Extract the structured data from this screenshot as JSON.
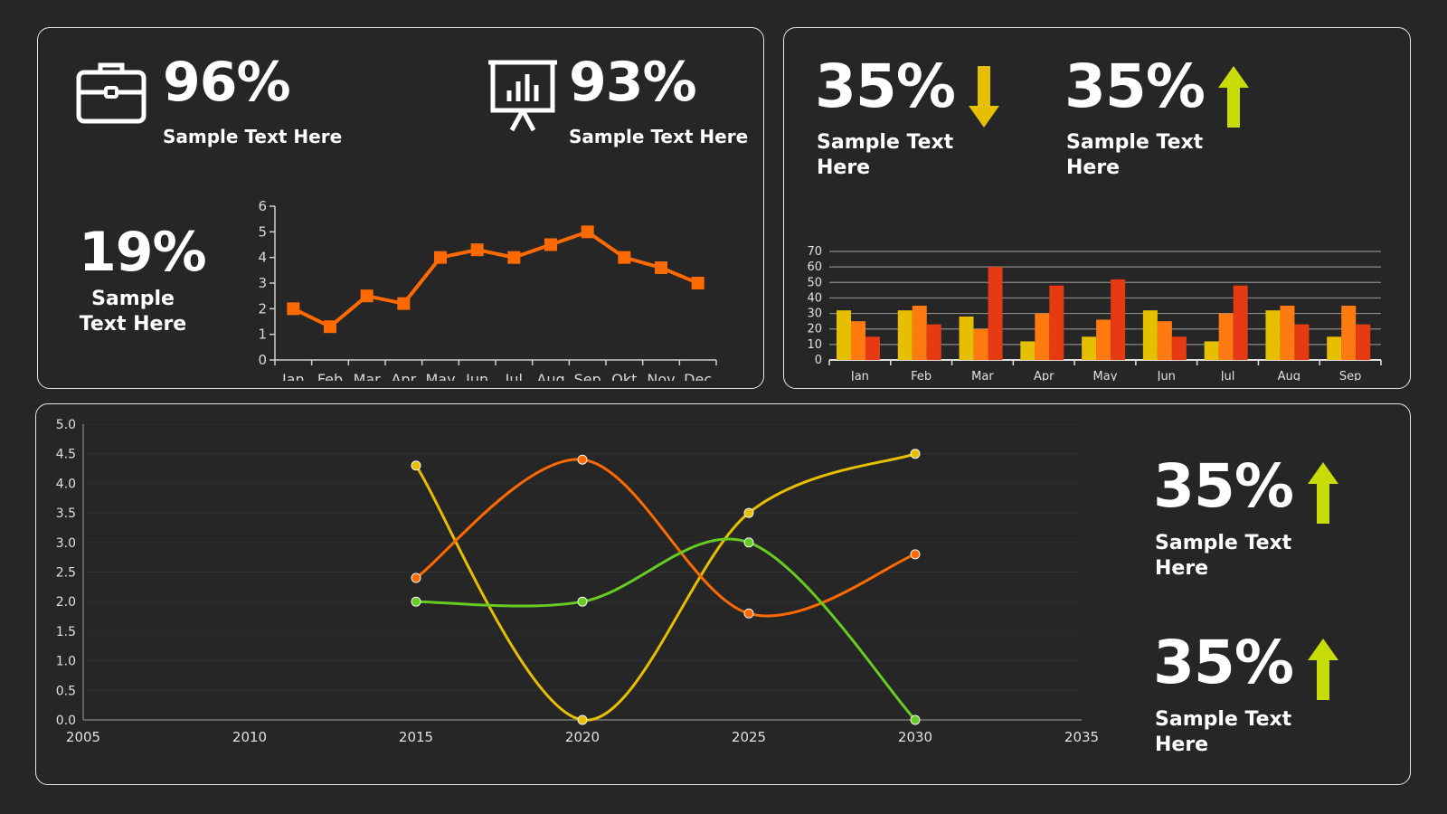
{
  "top_left": {
    "kpi1": {
      "value": "96%",
      "label": "Sample Text Here",
      "icon": "briefcase-icon"
    },
    "kpi2": {
      "value": "93%",
      "label": "Sample Text Here",
      "icon": "presentation-chart-icon"
    },
    "kpi3": {
      "value": "19%",
      "label_line1": "Sample",
      "label_line2": "Text Here"
    }
  },
  "top_right": {
    "kpi1": {
      "value": "35%",
      "label_line1": "Sample Text",
      "label_line2": "Here",
      "icon": "arrow-down-icon"
    },
    "kpi2": {
      "value": "35%",
      "label_line1": "Sample Text",
      "label_line2": "Here",
      "icon": "arrow-up-icon"
    }
  },
  "bottom": {
    "kpi1": {
      "value": "35%",
      "label_line1": "Sample Text",
      "label_line2": "Here",
      "icon": "arrow-up-icon"
    },
    "kpi2": {
      "value": "35%",
      "label_line1": "Sample Text",
      "label_line2": "Here",
      "icon": "arrow-up-icon"
    }
  },
  "colors": {
    "background": "#262626",
    "border": "#e6e6e6",
    "orange": "#ff6a00",
    "yellow": "#e6c000",
    "green": "#66cc22",
    "red": "#e63a12",
    "arrow_down": "#e6c000",
    "arrow_up": "#c8dc0a"
  },
  "chart_data": [
    {
      "type": "line",
      "categories": [
        "Jan",
        "Feb",
        "Mar",
        "Apr",
        "May",
        "Jun",
        "Jul",
        "Aug",
        "Sep",
        "Okt",
        "Nov",
        "Dec"
      ],
      "values": [
        2,
        1.3,
        2.5,
        2.2,
        4,
        4.3,
        4,
        4.5,
        5,
        4,
        3.6,
        3
      ],
      "ylim": [
        0,
        6
      ],
      "yticks": [
        0,
        1,
        2,
        3,
        4,
        5,
        6
      ],
      "color": "#ff6a00"
    },
    {
      "type": "bar",
      "categories": [
        "Jan",
        "Feb",
        "Mar",
        "Apr",
        "May",
        "Jun",
        "Jul",
        "Aug",
        "Sep"
      ],
      "series": [
        {
          "values": [
            32,
            32,
            28,
            12,
            15,
            32,
            12,
            32,
            15
          ],
          "color": "#e6c000"
        },
        {
          "values": [
            25,
            35,
            20,
            30,
            26,
            25,
            30,
            35,
            35
          ],
          "color": "#ff7a10"
        },
        {
          "values": [
            15,
            23,
            60,
            48,
            52,
            15,
            48,
            23,
            23
          ],
          "color": "#e63a12"
        }
      ],
      "ylim": [
        0,
        70
      ],
      "yticks": [
        0,
        10,
        20,
        30,
        40,
        50,
        60,
        70
      ]
    },
    {
      "type": "line",
      "x_ticks": [
        "2005",
        "2010",
        "2015",
        "2020",
        "2025",
        "2030",
        "2035"
      ],
      "xlim": [
        2005,
        2035
      ],
      "ylim": [
        0,
        5
      ],
      "yticks": [
        "0.0",
        "0.5",
        "1.0",
        "1.5",
        "2.0",
        "2.5",
        "3.0",
        "3.5",
        "4.0",
        "4.5",
        "5.0"
      ],
      "series": [
        {
          "x": [
            2015,
            2020,
            2025,
            2030
          ],
          "values": [
            4.3,
            0.0,
            3.5,
            4.5
          ],
          "color": "#e6c000"
        },
        {
          "x": [
            2015,
            2020,
            2025,
            2030
          ],
          "values": [
            2.4,
            4.4,
            1.8,
            2.8
          ],
          "color": "#ff6a00"
        },
        {
          "x": [
            2015,
            2020,
            2025,
            2030
          ],
          "values": [
            2.0,
            2.0,
            3.0,
            0.0
          ],
          "color": "#66cc22"
        }
      ]
    }
  ]
}
